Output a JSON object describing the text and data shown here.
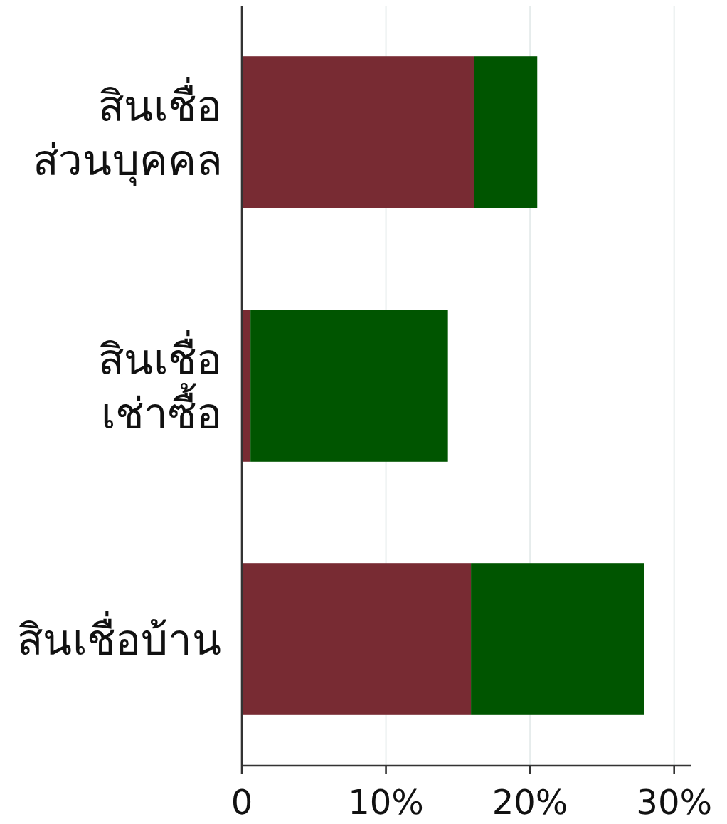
{
  "chart_data": {
    "type": "bar",
    "orientation": "horizontal",
    "stacked": true,
    "categories": [
      "สินเชื่อ\nส่วนบุคคล",
      "สินเชื่อ\nเช่าซื้อ",
      "สินเชื่อบ้าน"
    ],
    "series": [
      {
        "color": "#782b33",
        "values": [
          16.1,
          0.6,
          15.9
        ]
      },
      {
        "color": "#005500",
        "values": [
          4.4,
          13.7,
          12.0
        ]
      }
    ],
    "xlim": [
      0,
      31.2
    ],
    "xticks": [
      0,
      {
        "value": 10,
        "label": "10%"
      },
      {
        "value": 20,
        "label": "20%"
      },
      {
        "value": 30,
        "label": "30%"
      }
    ],
    "grid": "x"
  }
}
